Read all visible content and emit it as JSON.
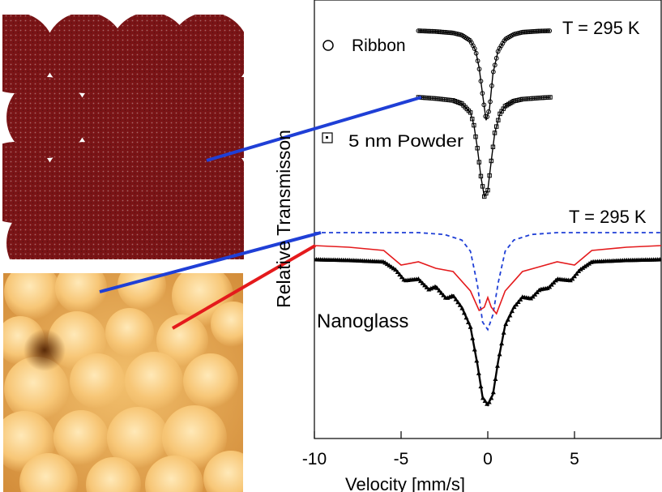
{
  "colors": {
    "sphere": "#7a1416",
    "data_points": "#000000",
    "fit_red": "#e41a1c",
    "fit_blue": "#1f3fd6",
    "afm_dark": "#7a3a0e",
    "afm_light": "#ffe9b8"
  },
  "chart_data": {
    "type": "line",
    "xlabel": "Velocity [mm/s]",
    "ylabel": "Relative Transmisson",
    "xlim": [
      -10,
      10
    ],
    "xticks": [
      -10,
      -5,
      0,
      5
    ],
    "xtick_labels": [
      "-10",
      "-5",
      "0",
      "5"
    ],
    "y_ticks_shown": false,
    "panels": [
      {
        "temperature_label": "T = 295 K",
        "series": [
          {
            "name": "Ribbon",
            "marker": "circle",
            "x": [
              -4.0,
              -3.0,
              -2.0,
              -1.5,
              -1.0,
              -0.7,
              -0.5,
              -0.3,
              -0.1,
              0.1,
              0.3,
              0.6,
              1.0,
              1.5,
              2.0,
              3.0,
              3.6
            ],
            "y": [
              1.0,
              0.995,
              0.985,
              0.97,
              0.93,
              0.86,
              0.74,
              0.55,
              0.37,
              0.45,
              0.7,
              0.86,
              0.94,
              0.975,
              0.99,
              0.998,
              1.0
            ]
          },
          {
            "name": "5 nm Powder",
            "marker": "square",
            "x": [
              -4.0,
              -3.0,
              -2.0,
              -1.5,
              -1.0,
              -0.8,
              -0.6,
              -0.4,
              -0.2,
              0.0,
              0.2,
              0.4,
              0.7,
              1.0,
              1.5,
              2.0,
              3.0,
              3.6
            ],
            "y": [
              1.0,
              0.99,
              0.975,
              0.95,
              0.88,
              0.78,
              0.6,
              0.38,
              0.22,
              0.27,
              0.5,
              0.72,
              0.87,
              0.93,
              0.97,
              0.985,
              0.995,
              1.0
            ]
          }
        ]
      },
      {
        "temperature_label": "T = 295 K",
        "annotation": "Nanoglass",
        "series": [
          {
            "name": "Nanoglass data",
            "marker": "triangle",
            "x": [
              -10.0,
              -8.0,
              -6.0,
              -5.3,
              -4.8,
              -4.0,
              -3.4,
              -3.0,
              -2.4,
              -2.0,
              -1.5,
              -1.0,
              -0.6,
              -0.3,
              0.0,
              0.3,
              0.6,
              1.0,
              1.5,
              2.0,
              2.5,
              3.0,
              3.5,
              4.0,
              4.8,
              5.3,
              6.0,
              8.0,
              10.0
            ],
            "y": [
              1.0,
              0.995,
              0.985,
              0.93,
              0.86,
              0.87,
              0.8,
              0.82,
              0.74,
              0.76,
              0.68,
              0.55,
              0.3,
              0.08,
              0.03,
              0.1,
              0.32,
              0.56,
              0.68,
              0.75,
              0.74,
              0.8,
              0.81,
              0.87,
              0.86,
              0.93,
              0.985,
              0.995,
              1.0
            ]
          },
          {
            "name": "Fit (red)",
            "marker": "none",
            "x": [
              -10.0,
              -8.0,
              -6.0,
              -5.0,
              -4.0,
              -3.0,
              -2.0,
              -1.0,
              -0.5,
              -0.2,
              0.0,
              0.2,
              0.5,
              1.0,
              2.0,
              3.0,
              4.0,
              5.0,
              6.0,
              8.0,
              10.0
            ],
            "y": [
              1.0,
              0.99,
              0.97,
              0.88,
              0.9,
              0.86,
              0.84,
              0.72,
              0.6,
              0.62,
              0.68,
              0.62,
              0.58,
              0.72,
              0.84,
              0.87,
              0.9,
              0.88,
              0.97,
              0.99,
              1.0
            ]
          },
          {
            "name": "Fit (blue dashed)",
            "marker": "none",
            "x": [
              -10.0,
              -4.0,
              -2.5,
              -1.5,
              -1.0,
              -0.6,
              -0.3,
              0.0,
              0.3,
              0.6,
              1.0,
              1.5,
              2.5,
              4.0,
              10.0
            ],
            "y": [
              1.0,
              1.0,
              0.99,
              0.96,
              0.9,
              0.72,
              0.52,
              0.48,
              0.56,
              0.73,
              0.9,
              0.96,
              0.99,
              1.0,
              1.0
            ]
          }
        ]
      }
    ]
  }
}
